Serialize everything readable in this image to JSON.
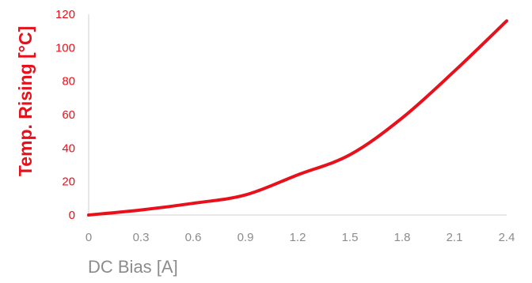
{
  "chart_data": {
    "type": "line",
    "title": "",
    "xlabel": "DC Bias [A]",
    "ylabel": "Temp. Rising [°C]",
    "xlim": [
      0,
      2.4
    ],
    "ylim": [
      0,
      120
    ],
    "x_ticks": [
      "0",
      "0.3",
      "0.6",
      "0.9",
      "1.2",
      "1.5",
      "1.8",
      "2.1",
      "2.4"
    ],
    "y_ticks": [
      "0",
      "20",
      "40",
      "60",
      "80",
      "100",
      "120"
    ],
    "grid": false,
    "legend": "none",
    "series": [
      {
        "color": "#e8101a",
        "x": [
          0,
          0.3,
          0.6,
          0.9,
          1.2,
          1.5,
          1.8,
          2.1,
          2.4
        ],
        "y": [
          0,
          3,
          7,
          12,
          24,
          36,
          58,
          86,
          116
        ]
      }
    ]
  }
}
